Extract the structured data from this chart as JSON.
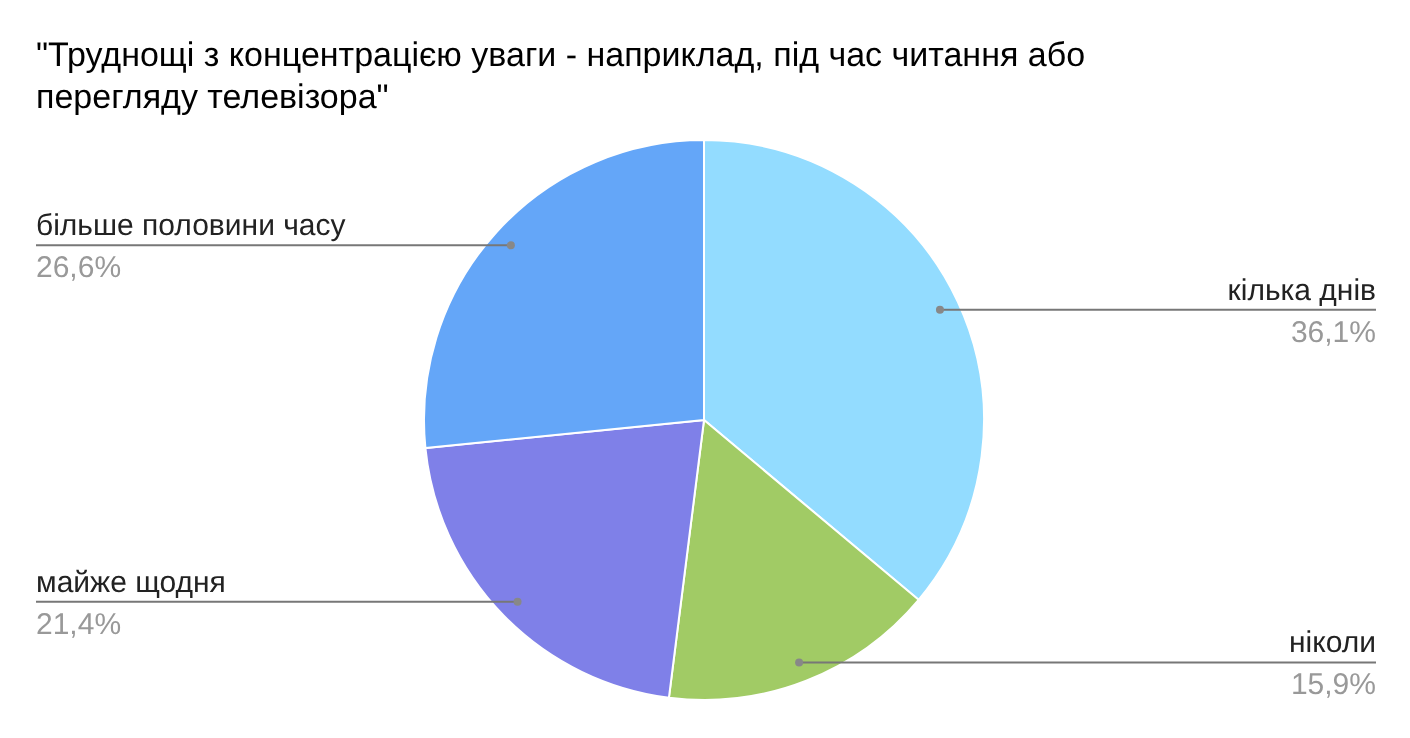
{
  "chart_data": {
    "type": "pie",
    "title": "\"Труднощі з концентрацією уваги - наприклад, під час читання або перегляду телевізора\"",
    "categories": [
      "кілька днів",
      "ніколи",
      "майже щодня",
      "більше половини часу"
    ],
    "values": [
      36.1,
      15.9,
      21.4,
      26.6
    ],
    "colors": [
      "#93dcff",
      "#a1cb65",
      "#7f80e8",
      "#64a6f8"
    ],
    "value_labels": [
      "36,1%",
      "15,9%",
      "21,4%",
      "26,6%"
    ],
    "legend": false
  }
}
